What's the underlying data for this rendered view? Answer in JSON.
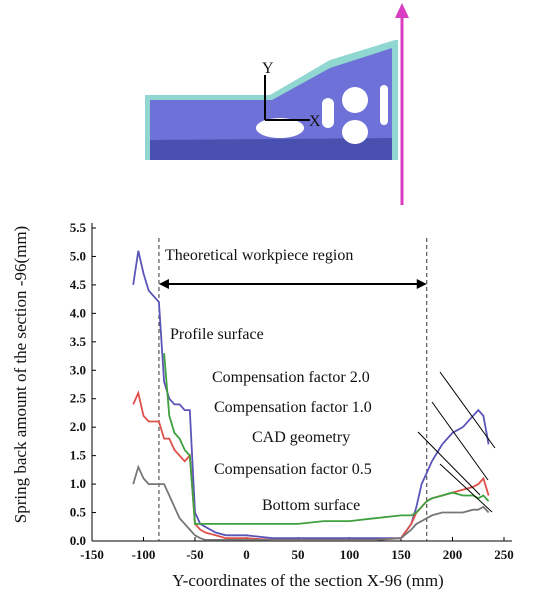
{
  "image": {
    "y_label": "Y",
    "x_label": "X"
  },
  "chart_data": {
    "type": "line",
    "y_axis_label": "Spring back amount of the section -96(mm)",
    "x_axis_label": "Y-coordinates of the section X-96 (mm)",
    "annotations": [
      "Theoretical workpiece region",
      "Profile surface",
      "Bottom surface"
    ],
    "region": [
      -85,
      175
    ],
    "xlim": [
      -150,
      250
    ],
    "xticks": [
      -150,
      -100,
      -50,
      0,
      50,
      100,
      150,
      200,
      250
    ],
    "ylim": [
      0,
      5.5
    ],
    "yticks": [
      {
        "value": 0,
        "label": "0.0"
      },
      0.5,
      {
        "value": 1,
        "label": "1.0"
      },
      1.5,
      {
        "value": 2,
        "label": "2.0"
      },
      2.5,
      {
        "value": 3,
        "label": "3.0"
      },
      3.5,
      {
        "value": 4,
        "label": "4.0"
      },
      4.5,
      {
        "value": 5,
        "label": "5.0"
      },
      5.5
    ],
    "x": [
      -110,
      -105,
      -100,
      -95,
      -90,
      -85,
      -80,
      -75,
      -70,
      -65,
      -60,
      -55,
      -50,
      -45,
      -40,
      -30,
      -20,
      0,
      25,
      50,
      75,
      100,
      125,
      150,
      160,
      165,
      170,
      175,
      180,
      190,
      200,
      210,
      220,
      225,
      230,
      235
    ],
    "series": [
      {
        "name": "Compensation factor 2.0",
        "color": "#5a55b8",
        "values": [
          4.5,
          5.1,
          4.7,
          4.4,
          4.3,
          4.2,
          2.8,
          2.5,
          2.4,
          2.4,
          2.3,
          2.3,
          0.5,
          0.3,
          0.25,
          0.15,
          0.1,
          0.1,
          0.05,
          0.05,
          0.05,
          0.05,
          0.05,
          0.05,
          0.3,
          0.6,
          1.0,
          1.2,
          1.4,
          1.7,
          1.9,
          2.0,
          2.2,
          2.3,
          2.2,
          1.7
        ]
      },
      {
        "name": "Compensation factor 1.0",
        "color": "#e0504a",
        "values": [
          2.4,
          2.6,
          2.2,
          2.1,
          2.1,
          2.1,
          1.8,
          1.8,
          1.6,
          1.5,
          1.4,
          1.5,
          0.3,
          0.2,
          0.15,
          0.1,
          0.05,
          0.05,
          0.02,
          0.02,
          0.02,
          0.02,
          0.02,
          0.05,
          0.3,
          0.5,
          0.6,
          0.7,
          0.75,
          0.8,
          0.85,
          0.9,
          0.95,
          1.0,
          1.1,
          0.8
        ]
      },
      {
        "name": "CAD geometry",
        "color": "#3fa03f",
        "values": [
          null,
          null,
          null,
          null,
          null,
          null,
          3.3,
          2.2,
          1.9,
          1.8,
          1.6,
          1.5,
          0.3,
          0.3,
          0.3,
          0.3,
          0.3,
          0.3,
          0.3,
          0.3,
          0.35,
          0.35,
          0.4,
          0.45,
          0.45,
          0.5,
          0.6,
          0.7,
          0.75,
          0.8,
          0.85,
          0.8,
          0.8,
          0.75,
          0.8,
          0.7
        ]
      },
      {
        "name": "Compensation factor 0.5",
        "color": "#777777",
        "values": [
          1.0,
          1.3,
          1.1,
          1.0,
          1.0,
          1.0,
          1.0,
          0.8,
          0.6,
          0.4,
          0.3,
          0.2,
          0.1,
          0.05,
          0.02,
          0.02,
          0.02,
          0.02,
          0.02,
          0.02,
          0.02,
          0.02,
          0.02,
          0.05,
          0.2,
          0.3,
          0.35,
          0.4,
          0.45,
          0.5,
          0.5,
          0.5,
          0.55,
          0.55,
          0.6,
          0.5
        ]
      }
    ]
  }
}
